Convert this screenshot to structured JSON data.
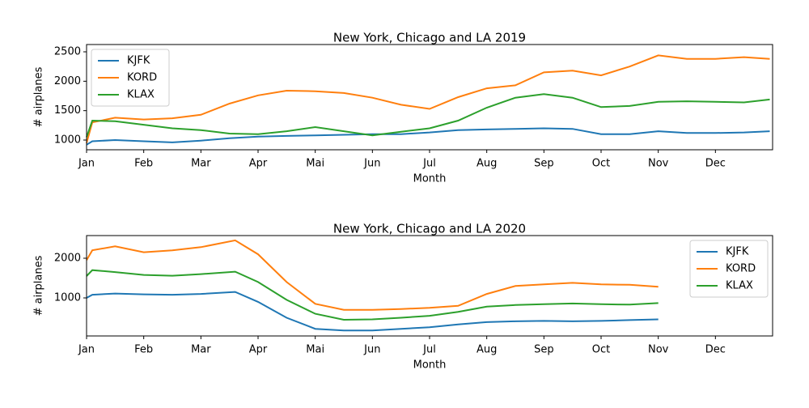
{
  "chart_data": [
    {
      "type": "line",
      "title": "New York, Chicago and LA 2019",
      "x_label": "Month",
      "y_label": "# airplanes",
      "x": [
        0,
        0.1,
        0.5,
        1,
        1.5,
        2,
        2.5,
        3,
        3.5,
        4,
        4.5,
        5,
        5.5,
        6,
        6.5,
        7,
        7.5,
        8,
        8.5,
        9,
        9.5,
        10,
        10.5,
        11,
        11.5,
        11.95
      ],
      "series": [
        {
          "name": "KJFK",
          "color": "#1f77b4",
          "values": [
            920,
            980,
            1000,
            980,
            960,
            990,
            1030,
            1060,
            1070,
            1080,
            1090,
            1100,
            1100,
            1130,
            1170,
            1180,
            1190,
            1200,
            1190,
            1100,
            1100,
            1150,
            1120,
            1120,
            1130,
            1150
          ]
        },
        {
          "name": "KORD",
          "color": "#ff7f0e",
          "values": [
            950,
            1300,
            1380,
            1350,
            1370,
            1430,
            1620,
            1760,
            1840,
            1830,
            1800,
            1720,
            1600,
            1530,
            1730,
            1880,
            1930,
            2150,
            2180,
            2100,
            2250,
            2440,
            2380,
            2380,
            2410,
            2380
          ]
        },
        {
          "name": "KLAX",
          "color": "#2ca02c",
          "values": [
            1050,
            1330,
            1320,
            1260,
            1200,
            1170,
            1110,
            1100,
            1150,
            1220,
            1150,
            1080,
            1140,
            1200,
            1330,
            1550,
            1720,
            1780,
            1720,
            1560,
            1580,
            1650,
            1660,
            1650,
            1640,
            1690
          ]
        }
      ],
      "xlim": [
        0,
        12
      ],
      "xticks": [
        {
          "value": 0,
          "label": "Jan"
        },
        {
          "value": 1,
          "label": "Feb"
        },
        {
          "value": 2,
          "label": "Mar"
        },
        {
          "value": 3,
          "label": "Apr"
        },
        {
          "value": 4,
          "label": "Mai"
        },
        {
          "value": 5,
          "label": "Jun"
        },
        {
          "value": 6,
          "label": "Jul"
        },
        {
          "value": 7,
          "label": "Aug"
        },
        {
          "value": 8,
          "label": "Sep"
        },
        {
          "value": 9,
          "label": "Oct"
        },
        {
          "value": 10,
          "label": "Nov"
        },
        {
          "value": 11,
          "label": "Dec"
        }
      ],
      "ylim": [
        835,
        2624
      ],
      "yticks": [
        1000,
        1500,
        2000,
        2500
      ],
      "legend": "upper-left"
    },
    {
      "type": "line",
      "title": "New York, Chicago and LA 2020",
      "x_label": "Month",
      "y_label": "# airplanes",
      "x": [
        0,
        0.1,
        0.5,
        1,
        1.5,
        2,
        2.6,
        3,
        3.5,
        4,
        4.5,
        5,
        5.5,
        6,
        6.5,
        7,
        7.5,
        8,
        8.5,
        9,
        9.5,
        10
      ],
      "series": [
        {
          "name": "KJFK",
          "color": "#1f77b4",
          "values": [
            1000,
            1080,
            1110,
            1090,
            1080,
            1100,
            1150,
            900,
            500,
            220,
            180,
            180,
            220,
            260,
            330,
            390,
            410,
            420,
            410,
            420,
            440,
            460
          ]
        },
        {
          "name": "KORD",
          "color": "#ff7f0e",
          "values": [
            1950,
            2200,
            2300,
            2150,
            2200,
            2280,
            2450,
            2100,
            1400,
            850,
            700,
            700,
            720,
            750,
            800,
            1100,
            1300,
            1340,
            1380,
            1340,
            1330,
            1280
          ]
        },
        {
          "name": "KLAX",
          "color": "#2ca02c",
          "values": [
            1550,
            1700,
            1650,
            1580,
            1560,
            1600,
            1660,
            1400,
            950,
            600,
            450,
            460,
            500,
            550,
            650,
            780,
            820,
            840,
            860,
            840,
            830,
            870
          ]
        }
      ],
      "xlim": [
        0,
        12
      ],
      "xticks": [
        {
          "value": 0,
          "label": "Jan"
        },
        {
          "value": 1,
          "label": "Feb"
        },
        {
          "value": 2,
          "label": "Mar"
        },
        {
          "value": 3,
          "label": "Apr"
        },
        {
          "value": 4,
          "label": "Mai"
        },
        {
          "value": 5,
          "label": "Jun"
        },
        {
          "value": 6,
          "label": "Jul"
        },
        {
          "value": 7,
          "label": "Aug"
        },
        {
          "value": 8,
          "label": "Sep"
        },
        {
          "value": 9,
          "label": "Oct"
        },
        {
          "value": 10,
          "label": "Nov"
        },
        {
          "value": 11,
          "label": "Dec"
        }
      ],
      "ylim": [
        41,
        2571
      ],
      "yticks": [
        1000,
        2000
      ],
      "legend": "upper-right"
    }
  ]
}
